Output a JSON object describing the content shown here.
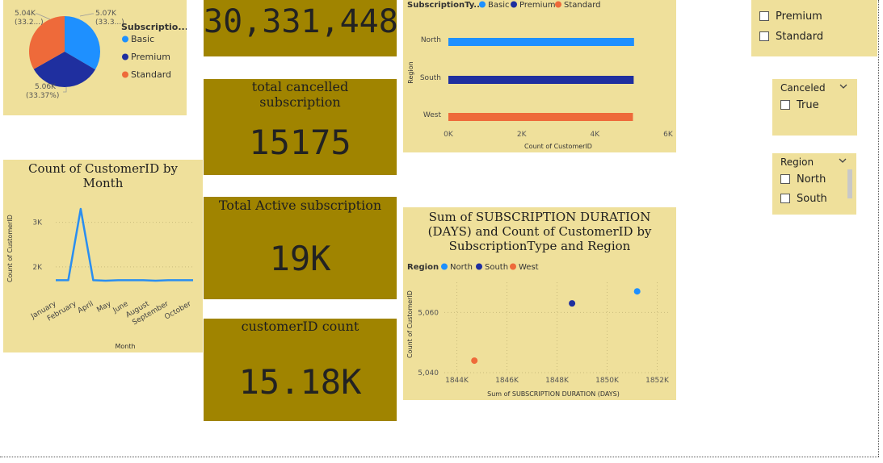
{
  "cards": {
    "revenue": {
      "value": "30,331,448"
    },
    "cancelled": {
      "title": "total cancelled subscription",
      "value": "15175"
    },
    "active": {
      "title": "Total Active subscription",
      "value": "19K"
    },
    "customer_count": {
      "title": "customerID count",
      "value": "15.18K"
    }
  },
  "slicers": {
    "subscription_type": {
      "options": [
        "Premium",
        "Standard"
      ]
    },
    "canceled": {
      "title": "Canceled",
      "options": [
        "True"
      ]
    },
    "region": {
      "title": "Region",
      "options": [
        "North",
        "South"
      ]
    }
  },
  "colors": {
    "tile": "#efe09b",
    "card": "#a08400",
    "basic": "#1e90ff",
    "premium": "#1f2f9f",
    "standard": "#ee6a3a",
    "line": "#2a8ef0"
  },
  "chart_data": [
    {
      "type": "pie",
      "legend_title": "Subscriptio...",
      "legend_position": "right",
      "slices": [
        {
          "name": "Basic",
          "value": 5.07,
          "label": "5.07K",
          "pct_label": "(33.3...)"
        },
        {
          "name": "Premium",
          "value": 5.06,
          "label": "5.06K",
          "pct_label": "(33.37%)"
        },
        {
          "name": "Standard",
          "value": 5.04,
          "label": "5.04K",
          "pct_label": "(33.2...)"
        }
      ]
    },
    {
      "type": "bar",
      "orientation": "horizontal",
      "legend_title": "SubscriptionTy...",
      "legend_position": "top",
      "categories": [
        "North",
        "South",
        "West"
      ],
      "series": [
        {
          "name": "Basic",
          "values": [
            5.07,
            null,
            null
          ]
        },
        {
          "name": "Premium",
          "values": [
            null,
            5.06,
            null
          ]
        },
        {
          "name": "Standard",
          "values": [
            null,
            null,
            5.04
          ]
        }
      ],
      "xlabel": "Count of CustomerID",
      "ylabel": "Region",
      "xlim": [
        0,
        6
      ],
      "xticks": [
        "0K",
        "2K",
        "4K",
        "6K"
      ]
    },
    {
      "type": "line",
      "title": "Count of CustomerID by Month",
      "xlabel": "Month",
      "ylabel": "Count of CustomerID",
      "x": [
        "January",
        "February",
        "April",
        "May",
        "June",
        "August",
        "September",
        "October"
      ],
      "all_points": [
        1700,
        1700,
        3300,
        1700,
        1690,
        1700,
        1700,
        1700,
        1690,
        1700,
        1700,
        1700
      ],
      "xtick_labels": [
        "January",
        "February",
        "April",
        "May",
        "June",
        "August",
        "September",
        "October"
      ],
      "yticks": [
        "2K",
        "3K"
      ],
      "ylim": [
        1400,
        3500
      ]
    },
    {
      "type": "scatter",
      "title": "Sum of SUBSCRIPTION DURATION (DAYS) and Count of CustomerID by SubscriptionType and Region",
      "legend_title": "Region",
      "legend_position": "top",
      "series": [
        {
          "name": "North",
          "x": 1851.2,
          "y": 5067
        },
        {
          "name": "South",
          "x": 1848.6,
          "y": 5063
        },
        {
          "name": "West",
          "x": 1844.7,
          "y": 5044
        }
      ],
      "xlabel": "Sum of SUBSCRIPTION DURATION (DAYS)",
      "ylabel": "Count of CustomerID",
      "xlim": [
        1843.5,
        1852.5
      ],
      "ylim": [
        5040,
        5070
      ],
      "xticks": [
        "1844K",
        "1846K",
        "1848K",
        "1850K",
        "1852K"
      ],
      "yticks": [
        "5,040",
        "5,060"
      ]
    }
  ]
}
